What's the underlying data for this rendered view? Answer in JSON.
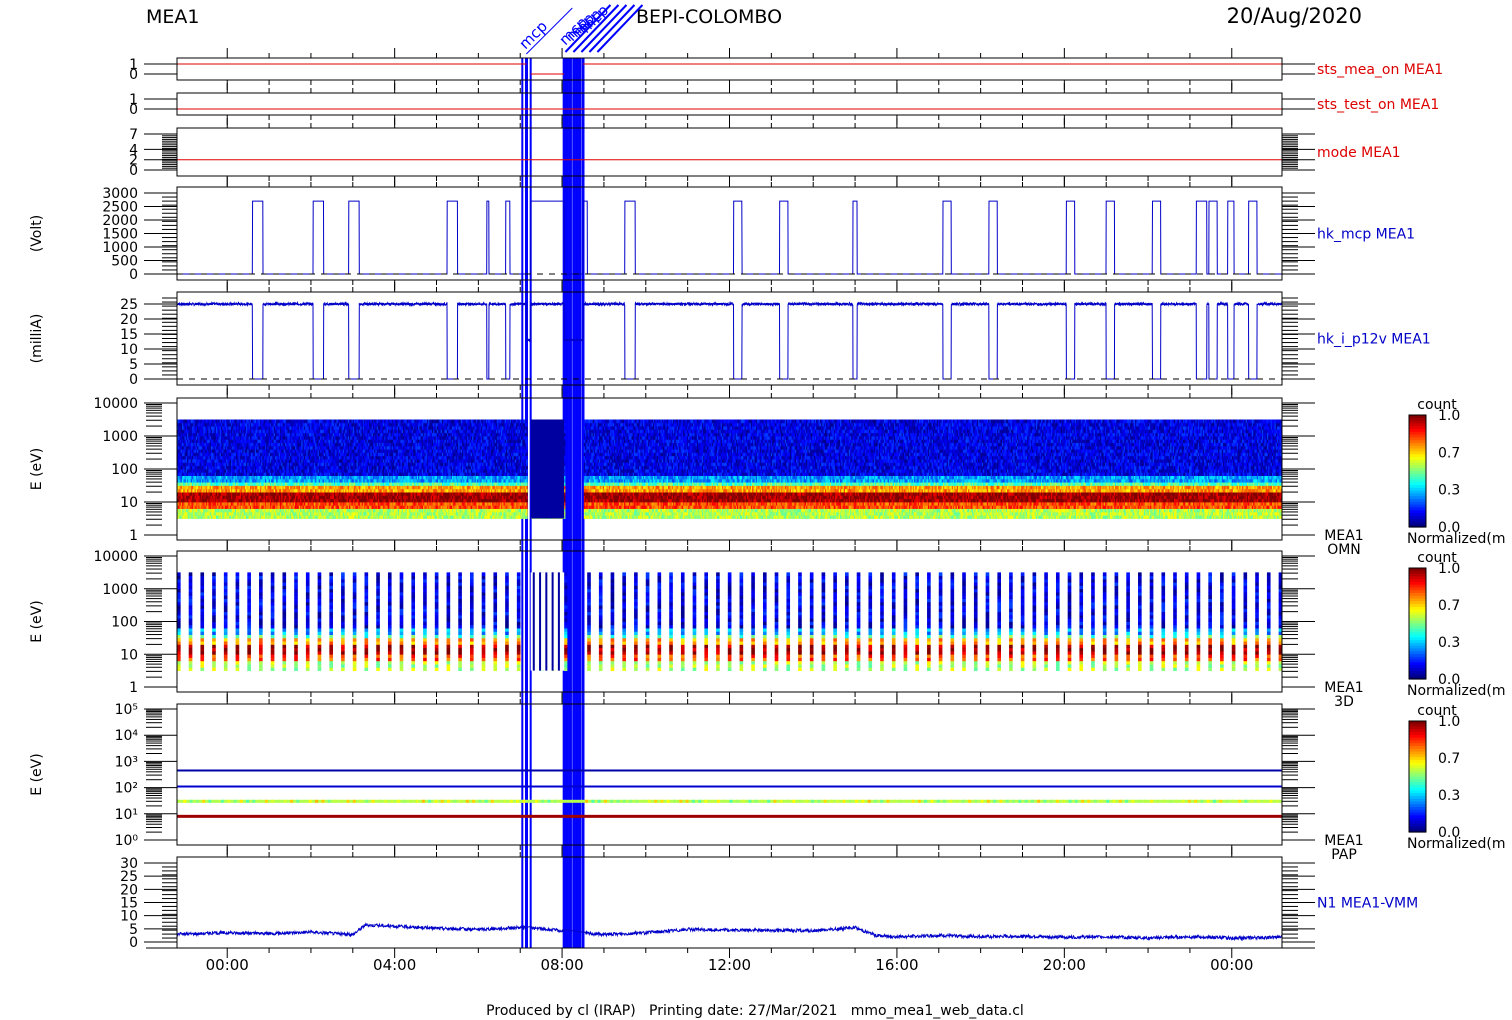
{
  "header": {
    "left": "MEA1",
    "center": "BEPI-COLOMBO",
    "right": "20/Aug/2020",
    "top_labels": [
      "mcp",
      "mcp"
    ]
  },
  "footer": "Produced by cl (IRAP)   Printing date: 27/Mar/2021   mmo_mea1_web_data.cl",
  "colors": {
    "red": "#dd0000",
    "blue": "#0000c8",
    "axis": "#000000",
    "event": "#0000ff"
  },
  "chart_data": {
    "type": "multi-panel time series",
    "time_range_hours": [
      -1.2,
      25.2
    ],
    "time_ticks": [
      {
        "t": 0,
        "label": "00:00"
      },
      {
        "t": 4,
        "label": "04:00"
      },
      {
        "t": 8,
        "label": "08:00"
      },
      {
        "t": 12,
        "label": "12:00"
      },
      {
        "t": 16,
        "label": "16:00"
      },
      {
        "t": 20,
        "label": "20:00"
      },
      {
        "t": 24,
        "label": "00:00"
      }
    ],
    "gap_intervals_hours": [
      [
        7.15,
        7.25
      ],
      [
        8.05,
        8.5
      ]
    ],
    "event_lines_hours": [
      7.05,
      7.15,
      7.25,
      8.05,
      8.12,
      8.2,
      8.28,
      8.35,
      8.42,
      8.5
    ],
    "panels": [
      {
        "name": "sts_mea_on MEA1",
        "color": "red",
        "type": "line",
        "ylim": [
          0,
          1
        ],
        "yticks": [
          {
            "v": 0,
            "label": "0"
          },
          {
            "v": 1,
            "label": "1"
          }
        ],
        "ylabel": "",
        "segments": [
          {
            "t": [
              -1.2,
              7.15
            ],
            "y": 1
          },
          {
            "t": [
              7.25,
              8.05
            ],
            "y": 0
          },
          {
            "t": [
              8.5,
              25.2
            ],
            "y": 1
          }
        ]
      },
      {
        "name": "sts_test_on MEA1",
        "color": "red",
        "type": "line",
        "ylim": [
          0,
          1
        ],
        "yticks": [
          {
            "v": 0,
            "label": "0"
          },
          {
            "v": 1,
            "label": "1"
          }
        ],
        "ylabel": "",
        "segments": [
          {
            "t": [
              -1.2,
              25.2
            ],
            "y": 0
          }
        ]
      },
      {
        "name": "mode MEA1",
        "color": "red",
        "type": "line",
        "ylim": [
          0,
          7
        ],
        "yticks": [
          {
            "v": 0,
            "label": "0"
          },
          {
            "v": 2,
            "label": "2"
          },
          {
            "v": 4,
            "label": "4"
          },
          {
            "v": 7,
            "label": "7"
          }
        ],
        "ylabel": "",
        "segments": [
          {
            "t": [
              -1.2,
              25.2
            ],
            "y": 2
          }
        ]
      },
      {
        "name": "hk_mcp MEA1",
        "color": "blue",
        "type": "pulse",
        "ylim": [
          0,
          3000
        ],
        "yticks": [
          {
            "v": 0,
            "label": "0"
          },
          {
            "v": 500,
            "label": "500"
          },
          {
            "v": 1000,
            "label": "1000"
          },
          {
            "v": 1500,
            "label": "1500"
          },
          {
            "v": 2000,
            "label": "2000"
          },
          {
            "v": 2500,
            "label": "2500"
          },
          {
            "v": 3000,
            "label": "3000"
          }
        ],
        "ylabel": "(Volt)",
        "high": 2700,
        "low": 0,
        "off_intervals": [
          [
            -1.2,
            0.6
          ],
          [
            0.85,
            2.05
          ],
          [
            2.3,
            2.9
          ],
          [
            3.15,
            5.25
          ],
          [
            5.5,
            6.2
          ],
          [
            6.25,
            6.65
          ],
          [
            6.75,
            7.15
          ],
          [
            8.6,
            9.5
          ],
          [
            9.75,
            12.1
          ],
          [
            12.3,
            13.2
          ],
          [
            13.4,
            14.95
          ],
          [
            15.05,
            17.1
          ],
          [
            17.3,
            18.2
          ],
          [
            18.4,
            20.05
          ],
          [
            20.25,
            21
          ],
          [
            21.2,
            22.1
          ],
          [
            22.3,
            23.15
          ],
          [
            23.4,
            23.45
          ],
          [
            23.65,
            23.9
          ],
          [
            24.05,
            24.4
          ],
          [
            24.6,
            25.2
          ]
        ]
      },
      {
        "name": "hk_i_p12v MEA1",
        "color": "blue",
        "type": "pulse",
        "ylim": [
          0,
          27
        ],
        "yticks": [
          {
            "v": 0,
            "label": "0"
          },
          {
            "v": 5,
            "label": "5"
          },
          {
            "v": 10,
            "label": "10"
          },
          {
            "v": 15,
            "label": "15"
          },
          {
            "v": 20,
            "label": "20"
          },
          {
            "v": 25,
            "label": "25"
          }
        ],
        "ylabel": "(milliA)",
        "high": 25,
        "low": 0,
        "gap_value": 13,
        "off_intervals": [
          [
            0.6,
            0.85
          ],
          [
            2.05,
            2.3
          ],
          [
            2.9,
            3.15
          ],
          [
            5.25,
            5.5
          ],
          [
            6.2,
            6.25
          ],
          [
            6.65,
            6.75
          ],
          [
            9.5,
            9.75
          ],
          [
            12.1,
            12.3
          ],
          [
            13.2,
            13.4
          ],
          [
            14.95,
            15.05
          ],
          [
            17.1,
            17.3
          ],
          [
            18.2,
            18.4
          ],
          [
            20.05,
            20.25
          ],
          [
            21,
            21.2
          ],
          [
            22.1,
            22.3
          ],
          [
            23.15,
            23.4
          ],
          [
            23.45,
            23.65
          ],
          [
            23.9,
            24.05
          ],
          [
            24.4,
            24.6
          ]
        ]
      },
      {
        "name": "MEA1 OMN",
        "type": "spectrogram",
        "ylabel": "E (eV)",
        "ylim_log": [
          0,
          4
        ],
        "yticks": [
          {
            "v": 0,
            "label": "1"
          },
          {
            "v": 1,
            "label": "10"
          },
          {
            "v": 2,
            "label": "100"
          },
          {
            "v": 3,
            "label": "1000"
          },
          {
            "v": 4,
            "label": "10000"
          }
        ],
        "colorbar": {
          "title": "count",
          "ticks": [
            "0.0",
            "0.3",
            "0.7",
            "1.0"
          ],
          "label": "Normalized(m"
        }
      },
      {
        "name": "MEA1 3D",
        "type": "spectrogram",
        "ylabel": "E (eV)",
        "ylim_log": [
          0,
          4
        ],
        "yticks": [
          {
            "v": 0,
            "label": "1"
          },
          {
            "v": 1,
            "label": "10"
          },
          {
            "v": 2,
            "label": "100"
          },
          {
            "v": 3,
            "label": "1000"
          },
          {
            "v": 4,
            "label": "10000"
          }
        ],
        "colorbar": {
          "title": "count",
          "ticks": [
            "0.0",
            "0.3",
            "0.7",
            "1.0"
          ],
          "label": "Normalized(m"
        }
      },
      {
        "name": "MEA1 PAP",
        "type": "spectrogram",
        "ylabel": "E (eV)",
        "ylim_log": [
          0,
          5
        ],
        "yticks": [
          {
            "v": 0,
            "label": "10⁰"
          },
          {
            "v": 1,
            "label": "10¹"
          },
          {
            "v": 2,
            "label": "10²"
          },
          {
            "v": 3,
            "label": "10³"
          },
          {
            "v": 4,
            "label": "10⁴"
          },
          {
            "v": 5,
            "label": "10⁵"
          }
        ],
        "colorbar": {
          "title": "count",
          "ticks": [
            "0.0",
            "0.3",
            "0.7",
            "1.0"
          ],
          "label": "Normalized(m"
        }
      },
      {
        "name": "N1 MEA1-VMM",
        "color": "blue",
        "type": "line",
        "ylim": [
          0,
          30
        ],
        "yticks": [
          {
            "v": 0,
            "label": "0"
          },
          {
            "v": 5,
            "label": "5"
          },
          {
            "v": 10,
            "label": "10"
          },
          {
            "v": 15,
            "label": "15"
          },
          {
            "v": 20,
            "label": "20"
          },
          {
            "v": 25,
            "label": "25"
          },
          {
            "v": 30,
            "label": "30"
          }
        ],
        "ylabel": "",
        "profile": [
          [
            -1.2,
            3
          ],
          [
            0,
            3.5
          ],
          [
            1,
            3.2
          ],
          [
            2,
            3.8
          ],
          [
            3,
            2.8
          ],
          [
            3.3,
            6.5
          ],
          [
            4,
            6
          ],
          [
            5,
            5.2
          ],
          [
            6,
            4.8
          ],
          [
            7,
            5.5
          ],
          [
            7.15,
            5.5
          ],
          [
            8.5,
            3.5
          ],
          [
            9,
            2.8
          ],
          [
            10,
            3.5
          ],
          [
            11,
            4.8
          ],
          [
            12,
            4.5
          ],
          [
            13,
            4.5
          ],
          [
            14,
            4.2
          ],
          [
            15,
            5.5
          ],
          [
            15.5,
            2.5
          ],
          [
            16,
            2
          ],
          [
            17,
            2.5
          ],
          [
            18,
            2
          ],
          [
            19,
            2.2
          ],
          [
            20,
            1.8
          ],
          [
            21,
            2
          ],
          [
            22,
            1.5
          ],
          [
            23,
            2
          ],
          [
            24,
            1.5
          ],
          [
            25.2,
            1.8
          ]
        ]
      }
    ]
  }
}
